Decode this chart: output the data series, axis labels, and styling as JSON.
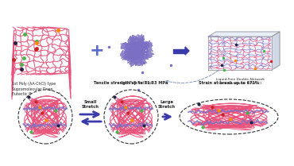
{
  "bg_color": "#ffffff",
  "pink_color": "#e8517a",
  "purple_color": "#7b6fc4",
  "blue_color": "#5b6bcf",
  "green_dot": "#4ab54a",
  "red_dot": "#cc2222",
  "dark_dot": "#222244",
  "orange_dot": "#ff8800",
  "label1": "1st Poly (AA-ChCl) type\nSupramolecular Deep\nEutectic Polymer Network",
  "label2": "2nd PVP Network",
  "label3": "Liquid-Free Double-Network\nIonic Conductor (LFDNIC)",
  "label4": "Tensile strength up to 71.33 MPa",
  "label5": "Strain at break up to 671%",
  "label6": "Small\nStretch",
  "label7": "Large\nStretch",
  "plus_color": "#5b6bcf",
  "arrow_color": "#3a3aaa"
}
